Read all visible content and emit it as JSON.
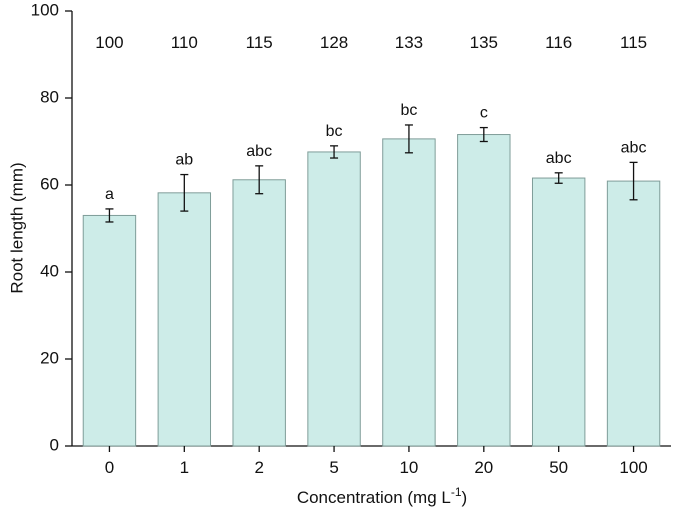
{
  "chart_data": {
    "type": "bar",
    "categories": [
      "0",
      "1",
      "2",
      "5",
      "10",
      "20",
      "50",
      "100"
    ],
    "values": [
      53,
      58.2,
      61.2,
      67.6,
      70.6,
      71.6,
      61.6,
      60.9
    ],
    "errors": [
      1.5,
      4.2,
      3.2,
      1.4,
      3.2,
      1.6,
      1.2,
      4.3
    ],
    "significance_labels": [
      "a",
      "ab",
      "abc",
      "bc",
      "bc",
      "c",
      "abc",
      "abc"
    ],
    "relative_values": [
      "100",
      "110",
      "115",
      "128",
      "133",
      "135",
      "116",
      "115"
    ],
    "xlabel": "Concentration (mg L",
    "xlabel_superscript": "-1",
    "xlabel_suffix": ")",
    "ylabel": "Root length (mm)",
    "ylim": [
      0,
      100
    ],
    "yticks": [
      "0",
      "20",
      "40",
      "60",
      "80",
      "100"
    ],
    "bar_color": "#cdece8",
    "bar_edge_color": "#7f9c98",
    "grid": false
  }
}
